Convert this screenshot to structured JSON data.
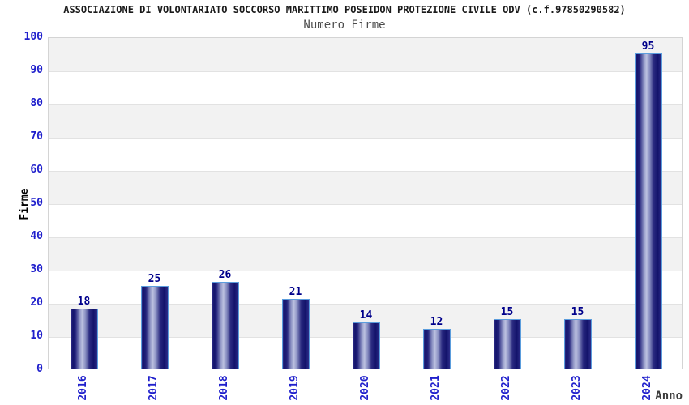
{
  "header": {
    "title": "ASSOCIAZIONE DI VOLONTARIATO SOCCORSO MARITTIMO POSEIDON PROTEZIONE CIVILE ODV (c.f.97850290582)",
    "subtitle": "Numero Firme"
  },
  "chart_data": {
    "type": "bar",
    "title": "Numero Firme",
    "categories": [
      "2016",
      "2017",
      "2018",
      "2019",
      "2020",
      "2021",
      "2022",
      "2023",
      "2024"
    ],
    "values": [
      18,
      25,
      26,
      21,
      14,
      12,
      15,
      15,
      95
    ],
    "xlabel": "Anno",
    "ylabel": "Firme",
    "ylim": [
      0,
      100
    ],
    "ytick_step": 10,
    "grid": "horizontal-bands",
    "legend": "none",
    "colors": {
      "tick_label": "#2020cc",
      "value_label": "#00008b",
      "band_gray": "#f2f2f2",
      "band_white": "#ffffff",
      "gridline": "#e2e2e2",
      "plot_border": "#d4d4d4",
      "bar_border": "#5b9ddd",
      "bar_dark": "#13136b",
      "bar_mid": "#2d2d88",
      "bar_light": "#bcc1e0",
      "title_color": "#1a1a1a",
      "subtitle_color": "#4d4d4d",
      "xlabel_color": "#3c3c3c",
      "ylabel_color": "#000000"
    }
  }
}
